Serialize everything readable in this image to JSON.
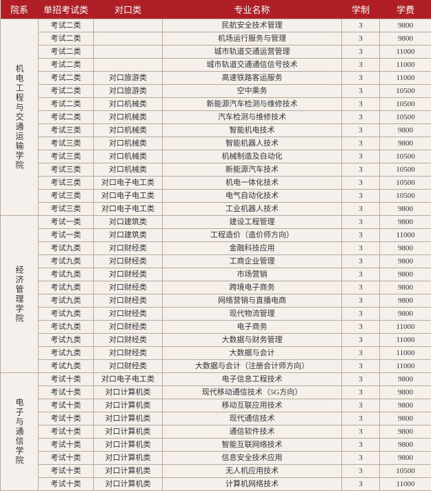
{
  "header": [
    "院系",
    "单招考试类",
    "对口类",
    "专业名称",
    "学制",
    "学费"
  ],
  "departments": [
    {
      "name": "机电工程与交通运输学院",
      "rows": [
        [
          "考试二类",
          "",
          "民航安全技术管理",
          "3",
          "9800"
        ],
        [
          "考试二类",
          "",
          "机场运行服务与管理",
          "3",
          "9800"
        ],
        [
          "考试二类",
          "",
          "城市轨道交通运营管理",
          "3",
          "11000"
        ],
        [
          "考试二类",
          "",
          "城市轨道交通通信信号技术",
          "3",
          "11000"
        ],
        [
          "考试二类",
          "对口旅游类",
          "高速铁路客运服务",
          "3",
          "11000"
        ],
        [
          "考试二类",
          "对口旅游类",
          "空中乘务",
          "3",
          "10500"
        ],
        [
          "考试二类",
          "对口机械类",
          "新能源汽车检测与维修技术",
          "3",
          "10500"
        ],
        [
          "考试二类",
          "对口机械类",
          "汽车检测与维修技术",
          "3",
          "10500"
        ],
        [
          "考试三类",
          "对口机械类",
          "智能机电技术",
          "3",
          "9800"
        ],
        [
          "考试三类",
          "对口机械类",
          "智能机器人技术",
          "3",
          "9800"
        ],
        [
          "考试三类",
          "对口机械类",
          "机械制造及自动化",
          "3",
          "10500"
        ],
        [
          "考试三类",
          "对口机械类",
          "新能源汽车技术",
          "3",
          "10500"
        ],
        [
          "考试三类",
          "对口电子电工类",
          "机电一体化技术",
          "3",
          "10500"
        ],
        [
          "考试三类",
          "对口电子电工类",
          "电气自动化技术",
          "3",
          "10500"
        ],
        [
          "考试三类",
          "对口电子电工类",
          "工业机器人技术",
          "3",
          "9800"
        ]
      ]
    },
    {
      "name": "经济管理学院",
      "rows": [
        [
          "考试一类",
          "对口建筑类",
          "建设工程管理",
          "3",
          "9800"
        ],
        [
          "考试一类",
          "对口建筑类",
          "工程造价（造价师方向）",
          "3",
          "11000"
        ],
        [
          "考试九类",
          "对口财经类",
          "金融科技应用",
          "3",
          "9800"
        ],
        [
          "考试九类",
          "对口财经类",
          "工商企业管理",
          "3",
          "9800"
        ],
        [
          "考试九类",
          "对口财经类",
          "市场营销",
          "3",
          "9800"
        ],
        [
          "考试九类",
          "对口财经类",
          "跨境电子商务",
          "3",
          "9800"
        ],
        [
          "考试九类",
          "对口财经类",
          "网络营销与直播电商",
          "3",
          "9800"
        ],
        [
          "考试九类",
          "对口财经类",
          "现代物流管理",
          "3",
          "9800"
        ],
        [
          "考试九类",
          "对口财经类",
          "电子商务",
          "3",
          "11000"
        ],
        [
          "考试九类",
          "对口财经类",
          "大数据与财务管理",
          "3",
          "11000"
        ],
        [
          "考试九类",
          "对口财经类",
          "大数据与会计",
          "3",
          "11000"
        ],
        [
          "考试九类",
          "对口财经类",
          "大数据与会计（注册会计师方向）",
          "3",
          "11000"
        ]
      ]
    },
    {
      "name": "电子与通信学院",
      "rows": [
        [
          "考试十类",
          "对口电子电工类",
          "电子信息工程技术",
          "3",
          "9800"
        ],
        [
          "考试十类",
          "对口计算机类",
          "现代移动通信技术（5G方向）",
          "3",
          "9800"
        ],
        [
          "考试十类",
          "对口计算机类",
          "移动互联应用技术",
          "3",
          "9800"
        ],
        [
          "考试十类",
          "对口计算机类",
          "现代通信技术",
          "3",
          "9800"
        ],
        [
          "考试十类",
          "对口计算机类",
          "通信软件技术",
          "3",
          "9800"
        ],
        [
          "考试十类",
          "对口计算机类",
          "智能互联网络技术",
          "3",
          "9800"
        ],
        [
          "考试十类",
          "对口计算机类",
          "信息安全技术应用",
          "3",
          "9800"
        ],
        [
          "考试十类",
          "对口计算机类",
          "无人机应用技术",
          "3",
          "10500"
        ],
        [
          "考试十类",
          "对口计算机类",
          "计算机网络技术",
          "3",
          "11000"
        ]
      ]
    }
  ]
}
